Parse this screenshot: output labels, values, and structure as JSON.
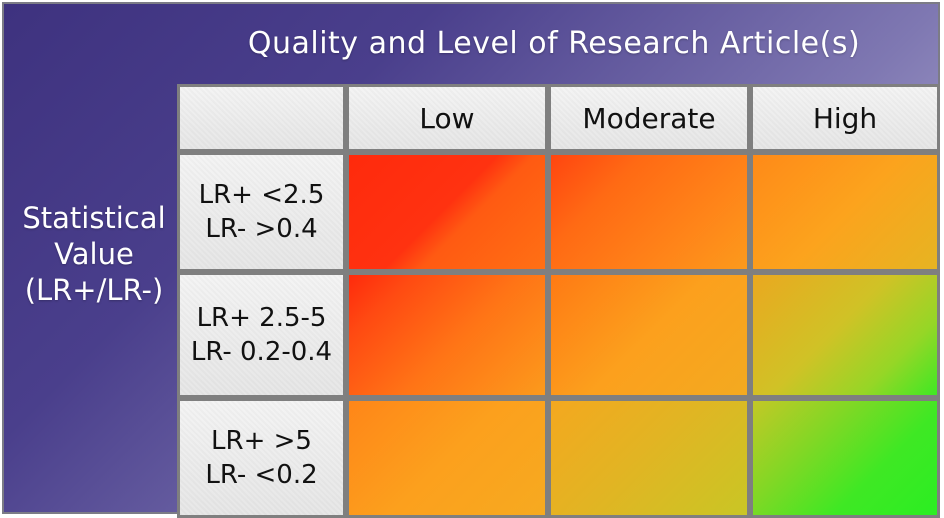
{
  "title": "Quality and Level of Research Article(s)",
  "side_label": [
    "Statistical",
    "Value",
    "(LR+/LR-)"
  ],
  "columns": [
    "Low",
    "Moderate",
    "High"
  ],
  "rows": [
    {
      "line1": "LR+ <2.5",
      "line2": "LR- >0.4"
    },
    {
      "line1": "LR+ 2.5-5",
      "line2": "LR- 0.2-0.4"
    },
    {
      "line1": "LR+ >5",
      "line2": "LR- <0.2"
    }
  ],
  "colors": {
    "red": "#ff2a0c",
    "orange": "#ff7a14",
    "amber": "#fca31d",
    "yellow": "#d7c424",
    "green": "#2bee22",
    "header_bg": "#ededed",
    "grid_line": "#7f7f7f",
    "frame_gradient_start": "#3e327f",
    "frame_gradient_end": "#c7c4e0"
  }
}
